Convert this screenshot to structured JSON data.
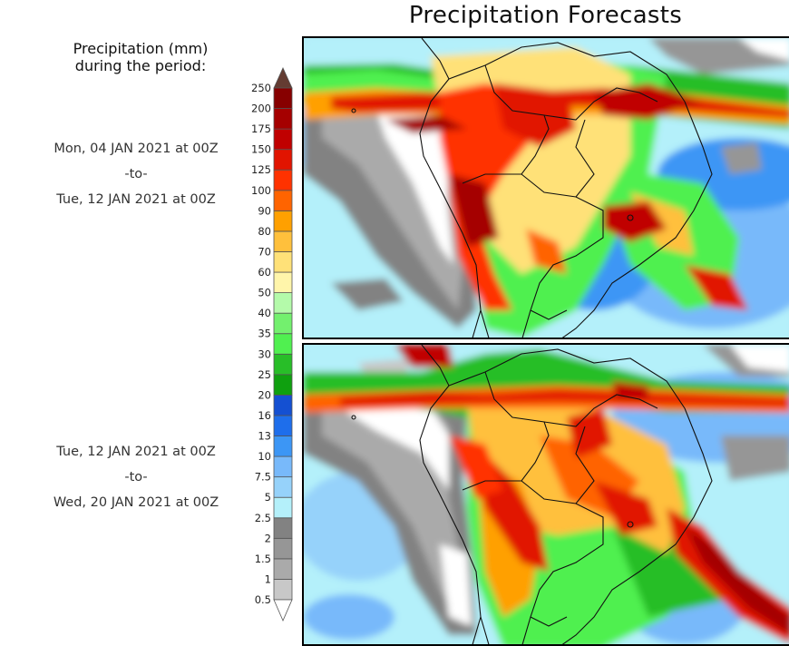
{
  "header": {
    "title": "Precipitation Forecasts"
  },
  "legend": {
    "title_line1": "Precipitation (mm)",
    "title_line2": "during the period:",
    "colors": [
      "#c8c8c8",
      "#aaaaaa",
      "#969696",
      "#828282",
      "#b4f0fa",
      "#96d2fa",
      "#78b9fa",
      "#3c96f5",
      "#1e6eeb",
      "#1450d2",
      "#0fa00f",
      "#28be28",
      "#50f050",
      "#73f06e",
      "#b4faaa",
      "#fff5aa",
      "#ffe178",
      "#ffc03c",
      "#ffa000",
      "#ff6400",
      "#ff3200",
      "#e11400",
      "#c00000",
      "#a50000",
      "#870000"
    ],
    "over_color": "#643c32",
    "under_color": "#ffffff",
    "levels": [
      "0.5",
      "1",
      "1.5",
      "2",
      "2.5",
      "5",
      "7.5",
      "10",
      "13",
      "16",
      "20",
      "25",
      "30",
      "35",
      "40",
      "50",
      "60",
      "70",
      "80",
      "90",
      "100",
      "125",
      "150",
      "175",
      "200",
      "250"
    ]
  },
  "periods": [
    {
      "start": "Mon, 04 JAN 2021 at 00Z",
      "sep": "-to-",
      "end": "Tue, 12 JAN 2021 at 00Z"
    },
    {
      "start": "Tue, 12 JAN 2021 at 00Z",
      "sep": "-to-",
      "end": "Wed, 20 JAN 2021 at 00Z"
    }
  ]
}
